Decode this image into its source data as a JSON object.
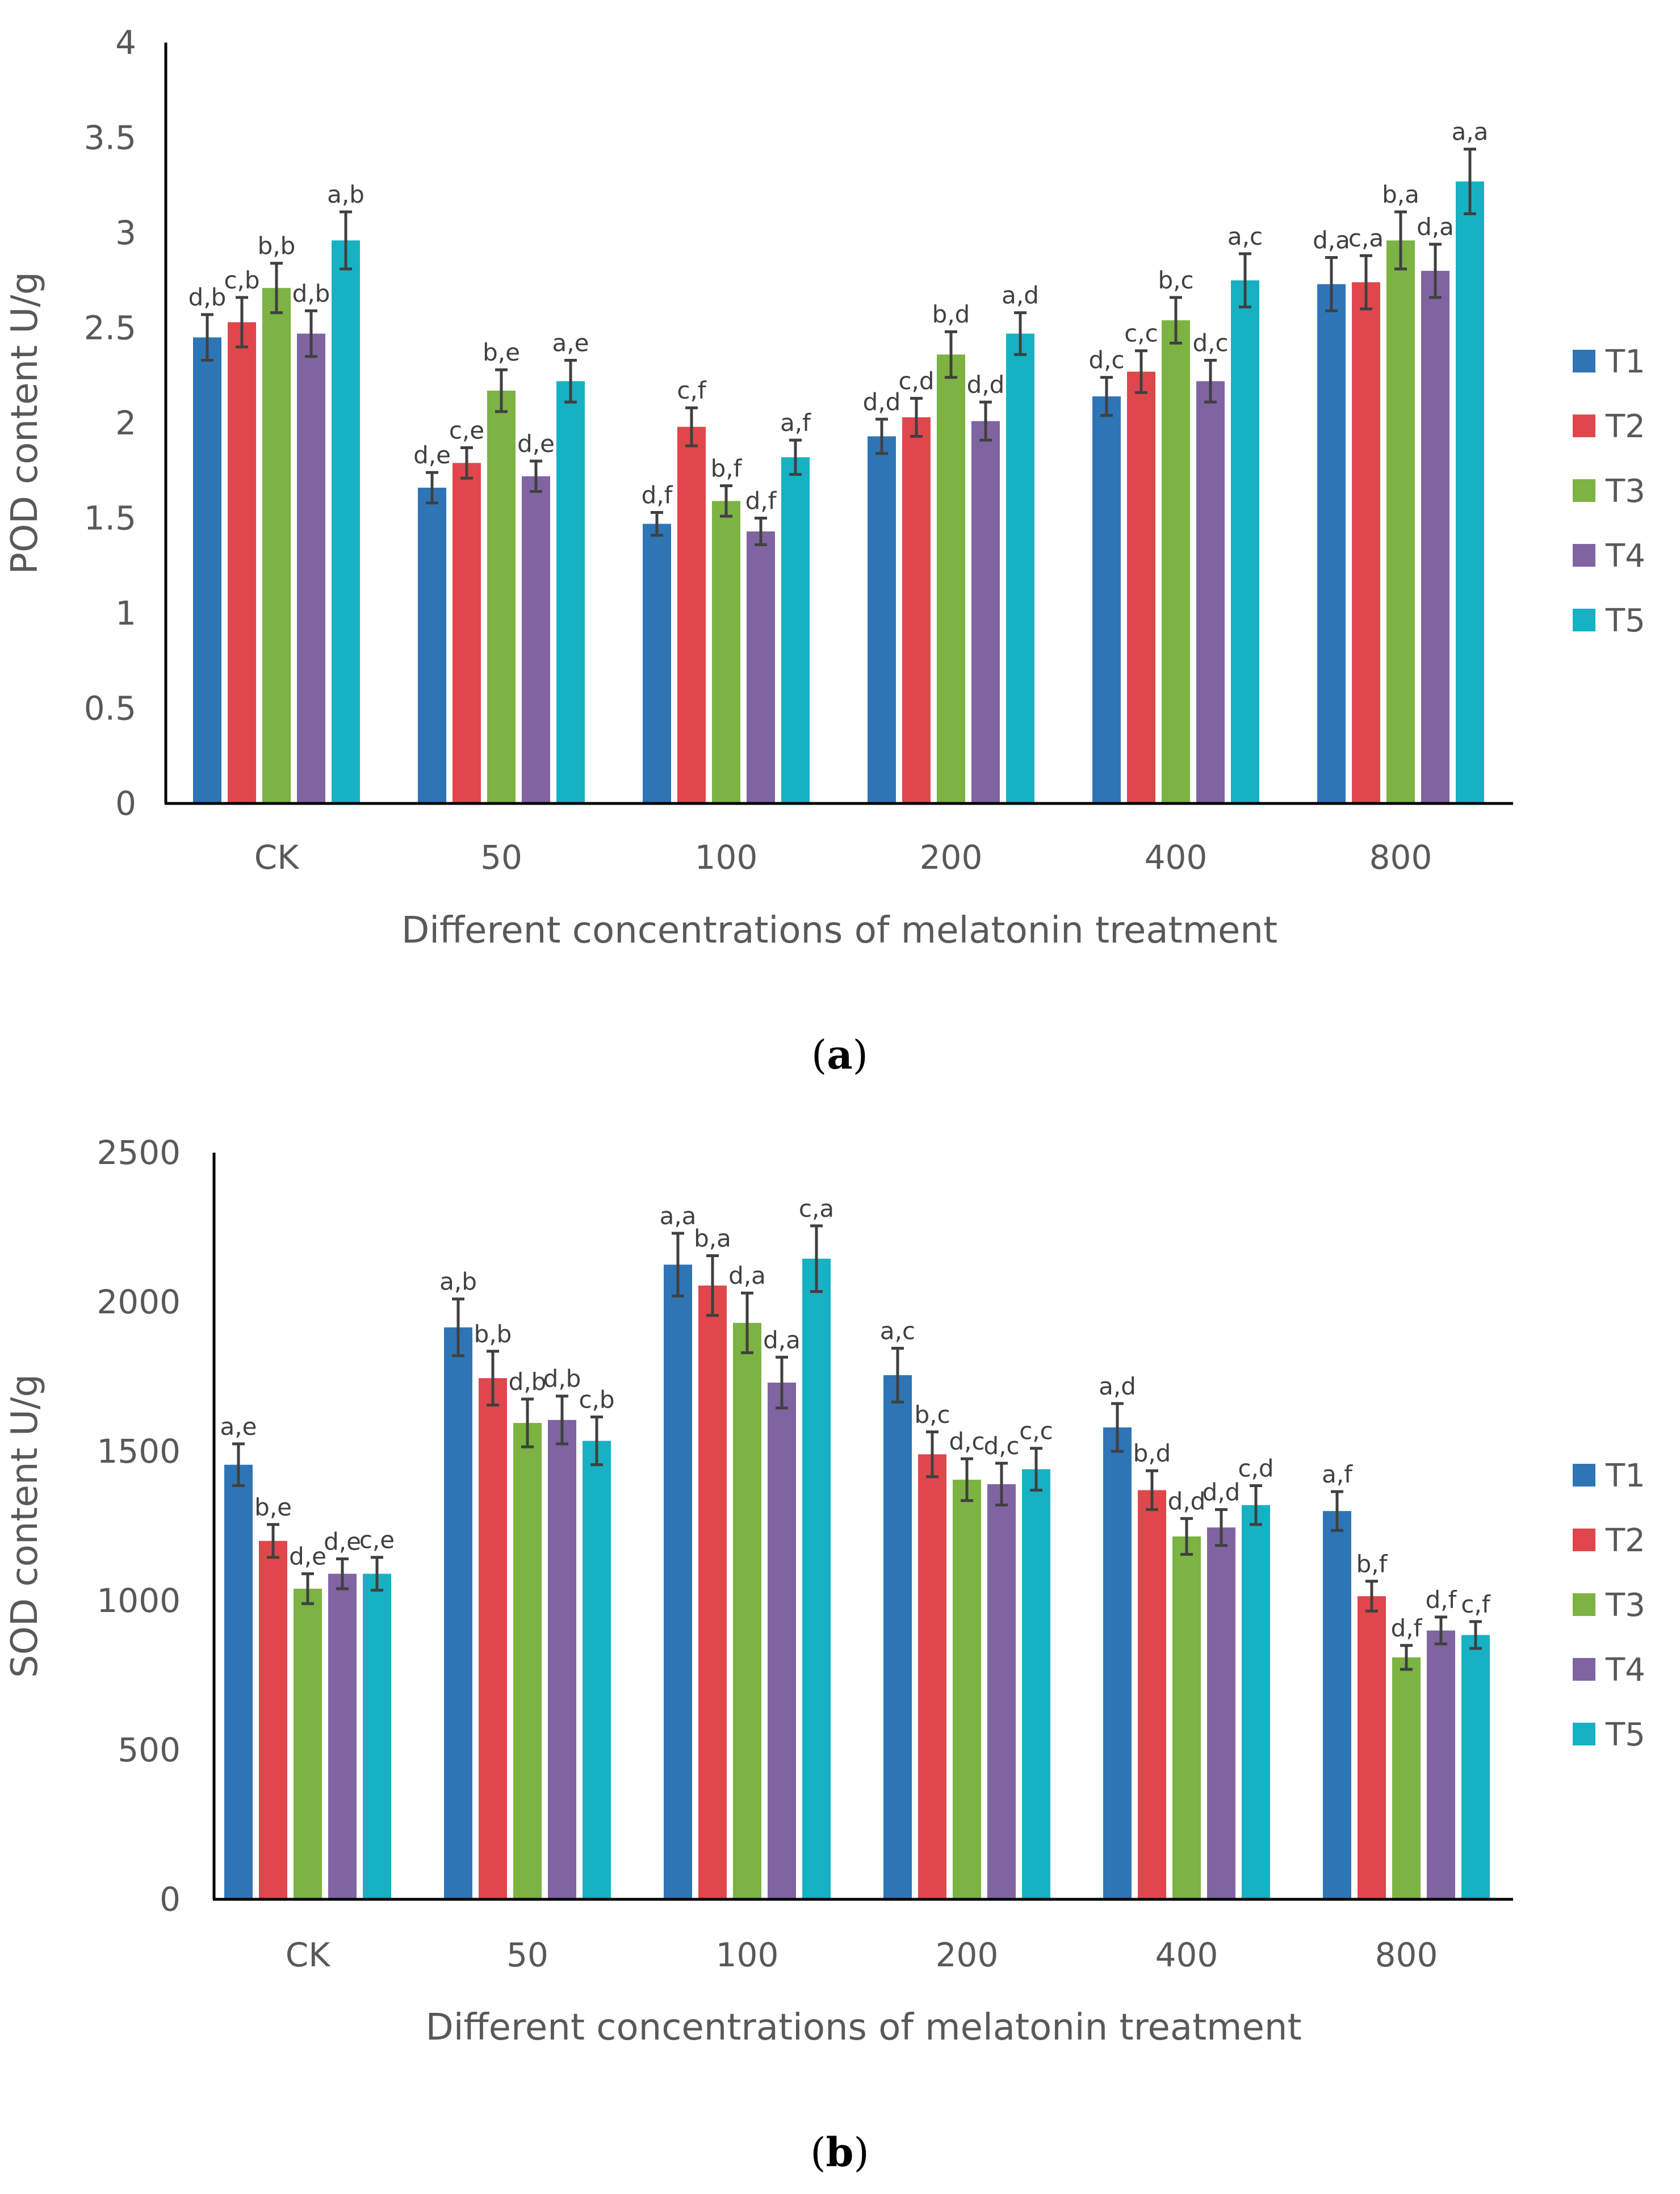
{
  "colors": {
    "T1": "#2e75b6",
    "T2": "#e0474c",
    "T3": "#7cb342",
    "T4": "#8064a2",
    "T5": "#17b1c4",
    "error": "#404040",
    "axis": "#000000",
    "text": "#595959"
  },
  "panel_labels": [
    {
      "open": "(",
      "letter": "a",
      "close": ")"
    },
    {
      "open": "(",
      "letter": "b",
      "close": ")"
    }
  ],
  "chart_data": [
    {
      "type": "bar",
      "title": "",
      "xlabel": "Different concentrations of melatonin treatment",
      "ylabel": "POD content U/g",
      "ylim": [
        0,
        4
      ],
      "yticks": [
        "0",
        "0.5",
        "1",
        "1.5",
        "2",
        "2.5",
        "3",
        "3.5",
        "4"
      ],
      "categories": [
        "CK",
        "50",
        "100",
        "200",
        "400",
        "800"
      ],
      "legend_position": "right",
      "series": [
        {
          "name": "T1",
          "values": [
            2.45,
            1.66,
            1.47,
            1.93,
            2.14,
            2.73
          ],
          "errors": [
            0.12,
            0.08,
            0.06,
            0.09,
            0.1,
            0.14
          ],
          "labels": [
            "d,b",
            "d,e",
            "d,f",
            "d,d",
            "d,c",
            "d,a"
          ]
        },
        {
          "name": "T2",
          "values": [
            2.53,
            1.79,
            1.98,
            2.03,
            2.27,
            2.74
          ],
          "errors": [
            0.13,
            0.08,
            0.1,
            0.1,
            0.11,
            0.14
          ],
          "labels": [
            "c,b",
            "c,e",
            "c,f",
            "c,d",
            "c,c",
            "c,a"
          ]
        },
        {
          "name": "T3",
          "values": [
            2.71,
            2.17,
            1.59,
            2.36,
            2.54,
            2.96
          ],
          "errors": [
            0.13,
            0.11,
            0.08,
            0.12,
            0.12,
            0.15
          ],
          "labels": [
            "b,b",
            "b,e",
            "b,f",
            "b,d",
            "b,c",
            "b,a"
          ]
        },
        {
          "name": "T4",
          "values": [
            2.47,
            1.72,
            1.43,
            2.01,
            2.22,
            2.8
          ],
          "errors": [
            0.12,
            0.08,
            0.07,
            0.1,
            0.11,
            0.14
          ],
          "labels": [
            "d,b",
            "d,e",
            "d,f",
            "d,d",
            "d,c",
            "d,a"
          ]
        },
        {
          "name": "T5",
          "values": [
            2.96,
            2.22,
            1.82,
            2.47,
            2.75,
            3.27
          ],
          "errors": [
            0.15,
            0.11,
            0.09,
            0.11,
            0.14,
            0.17
          ],
          "labels": [
            "a,b",
            "a,e",
            "a,f",
            "a,d",
            "a,c",
            "a,a"
          ]
        }
      ]
    },
    {
      "type": "bar",
      "title": "",
      "xlabel": "Different concentrations of melatonin treatment",
      "ylabel": "SOD content U/g",
      "ylim": [
        0,
        2500
      ],
      "yticks": [
        "0",
        "500",
        "1000",
        "1500",
        "2000",
        "2500"
      ],
      "categories": [
        "CK",
        "50",
        "100",
        "200",
        "400",
        "800"
      ],
      "legend_position": "right",
      "series": [
        {
          "name": "T1",
          "values": [
            1455,
            1915,
            2125,
            1755,
            1580,
            1300
          ],
          "errors": [
            70,
            95,
            105,
            90,
            80,
            65
          ],
          "labels": [
            "a,e",
            "a,b",
            "a,a",
            "a,c",
            "a,d",
            "a,f"
          ]
        },
        {
          "name": "T2",
          "values": [
            1200,
            1745,
            2055,
            1490,
            1370,
            1015
          ],
          "errors": [
            55,
            90,
            100,
            75,
            65,
            50
          ],
          "labels": [
            "b,e",
            "b,b",
            "b,a",
            "b,c",
            "b,d",
            "b,f"
          ]
        },
        {
          "name": "T3",
          "values": [
            1040,
            1595,
            1930,
            1405,
            1215,
            810
          ],
          "errors": [
            50,
            80,
            100,
            70,
            60,
            40
          ],
          "labels": [
            "d,e",
            "d,b",
            "d,a",
            "d,c",
            "d,d",
            "d,f"
          ]
        },
        {
          "name": "T4",
          "values": [
            1090,
            1605,
            1730,
            1390,
            1245,
            900
          ],
          "errors": [
            50,
            80,
            85,
            70,
            60,
            45
          ],
          "labels": [
            "d,e",
            "d,b",
            "d,a",
            "d,c",
            "d,d",
            "d,f"
          ]
        },
        {
          "name": "T5",
          "values": [
            1090,
            1535,
            2145,
            1440,
            1320,
            885
          ],
          "errors": [
            55,
            80,
            110,
            70,
            65,
            45
          ],
          "labels": [
            "c,e",
            "c,b",
            "c,a",
            "c,c",
            "c,d",
            "c,f"
          ]
        }
      ]
    }
  ]
}
